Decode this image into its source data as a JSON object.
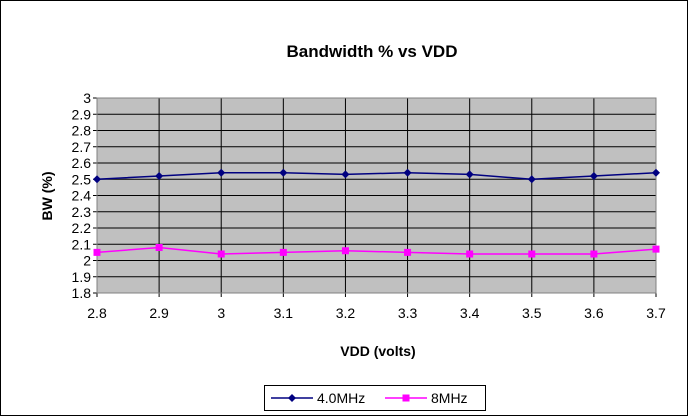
{
  "chart_data": {
    "type": "line",
    "title": "Bandwidth % vs VDD",
    "xlabel": "VDD (volts)",
    "ylabel": "BW (%)",
    "categories": [
      "2.8",
      "2.9",
      "3",
      "3.1",
      "3.2",
      "3.3",
      "3.4",
      "3.5",
      "3.6",
      "3.7"
    ],
    "yticks": [
      "1.8",
      "1.9",
      "2",
      "2.1",
      "2.2",
      "2.3",
      "2.4",
      "2.5",
      "2.6",
      "2.7",
      "2.8",
      "2.9",
      "3"
    ],
    "ylim": [
      1.8,
      3.0
    ],
    "grid": true,
    "legend_position": "bottom",
    "series": [
      {
        "name": "4.0MHz",
        "color": "#000080",
        "marker": "diamond",
        "values": [
          2.5,
          2.52,
          2.54,
          2.54,
          2.53,
          2.54,
          2.53,
          2.5,
          2.52,
          2.54
        ]
      },
      {
        "name": "8MHz",
        "color": "#ff00ff",
        "marker": "square",
        "values": [
          2.05,
          2.08,
          2.04,
          2.05,
          2.06,
          2.05,
          2.04,
          2.04,
          2.04,
          2.07
        ]
      }
    ],
    "plot_background": "#c0c0c0"
  }
}
